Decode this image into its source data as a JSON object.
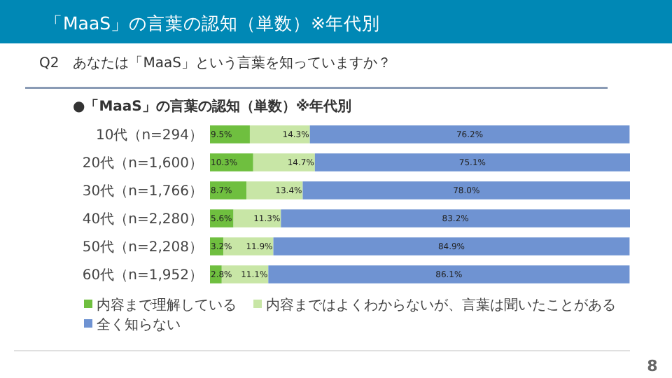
{
  "chart_data": {
    "type": "bar",
    "orientation": "horizontal",
    "stacked": true,
    "legend": "bottom",
    "title": "「MaaS」の言葉の認知（単数）※年代別",
    "subtitle": "Q2　あなたは「MaaS」という言葉を知っていますか？",
    "annotations": [
      "●「MaaS」の言葉の認知（単数）※年代別",
      "8"
    ],
    "categories": [
      "10代（n=294）",
      "20代（n=1,600）",
      "30代（n=1,766）",
      "40代（n=2,280）",
      "50代（n=2,208）",
      "60代（n=1,952）"
    ],
    "series": [
      {
        "name": "内容まで理解している",
        "color": "#6fbf3f",
        "values": [
          9.5,
          10.3,
          8.7,
          5.6,
          3.2,
          2.8
        ],
        "value_labels": [
          "9.5%",
          "10.3%",
          "8.7%",
          "5.6%",
          "3.2%",
          "2.8%"
        ]
      },
      {
        "name": "内容まではよくわからないが、言葉は聞いたことがある",
        "color": "#c8e6a6",
        "values": [
          14.3,
          14.7,
          13.4,
          11.3,
          11.9,
          11.1
        ],
        "value_labels": [
          "14.3%",
          "14.7%",
          "13.4%",
          "11.3%",
          "11.9%",
          "11.1%"
        ]
      },
      {
        "name": "全く知らない",
        "color": "#6f93d2",
        "values": [
          76.2,
          75.1,
          78.0,
          83.2,
          84.9,
          86.1
        ],
        "value_labels": [
          "76.2%",
          "75.1%",
          "78.0%",
          "83.2%",
          "84.9%",
          "86.1%"
        ]
      }
    ]
  }
}
